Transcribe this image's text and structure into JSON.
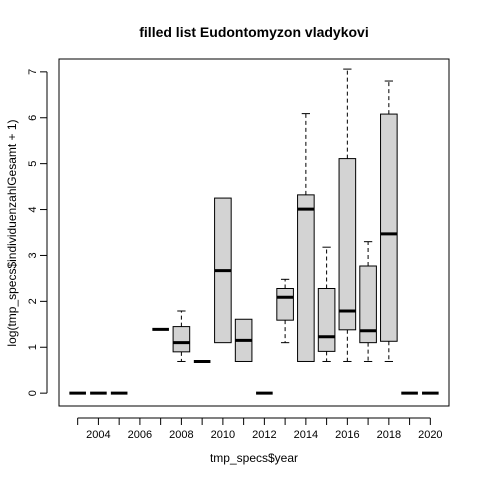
{
  "chart_data": {
    "type": "boxplot",
    "title": "filled list Eudontomyzon vladykovi",
    "xlabel": "tmp_specs$year",
    "ylabel": "log(tmp_specs$individuenzahlGesamt + 1)",
    "ylim": [
      -0.28,
      7.28
    ],
    "yticks": [
      0,
      1,
      2,
      3,
      4,
      5,
      6,
      7
    ],
    "xtick_labels": [
      "2004",
      "2006",
      "2008",
      "2010",
      "2012",
      "2014",
      "2016",
      "2018",
      "2020"
    ],
    "grid": false,
    "categories": [
      "2003",
      "2004",
      "2005",
      "2006",
      "2007",
      "2008",
      "2009",
      "2010",
      "2011",
      "2012",
      "2013",
      "2014",
      "2015",
      "2016",
      "2017",
      "2018",
      "2019",
      "2020"
    ],
    "boxes": [
      {
        "year": "2003",
        "min": 0,
        "q1": 0,
        "median": 0,
        "q3": 0,
        "max": 0
      },
      {
        "year": "2004",
        "min": 0,
        "q1": 0,
        "median": 0,
        "q3": 0,
        "max": 0
      },
      {
        "year": "2005",
        "min": 0,
        "q1": 0,
        "median": 0,
        "q3": 0,
        "max": 0
      },
      {
        "year": "2006",
        "min": null,
        "q1": null,
        "median": null,
        "q3": null,
        "max": null
      },
      {
        "year": "2007",
        "min": 1.39,
        "q1": 1.39,
        "median": 1.39,
        "q3": 1.39,
        "max": 1.39
      },
      {
        "year": "2008",
        "min": 0.69,
        "q1": 0.9,
        "median": 1.1,
        "q3": 1.45,
        "max": 1.79
      },
      {
        "year": "2009",
        "min": 0.69,
        "q1": 0.69,
        "median": 0.69,
        "q3": 0.69,
        "max": 0.69
      },
      {
        "year": "2010",
        "min": 1.1,
        "q1": 1.1,
        "median": 2.67,
        "q3": 4.25,
        "max": 4.25
      },
      {
        "year": "2011",
        "min": 0.69,
        "q1": 0.69,
        "median": 1.15,
        "q3": 1.61,
        "max": 1.61
      },
      {
        "year": "2012",
        "min": 0,
        "q1": 0,
        "median": 0,
        "q3": 0,
        "max": 0
      },
      {
        "year": "2013",
        "min": 1.1,
        "q1": 1.59,
        "median": 2.09,
        "q3": 2.28,
        "max": 2.48
      },
      {
        "year": "2014",
        "min": 0.69,
        "q1": 0.69,
        "median": 4.01,
        "q3": 4.32,
        "max": 6.09
      },
      {
        "year": "2015",
        "min": 0.69,
        "q1": 0.91,
        "median": 1.23,
        "q3": 2.28,
        "max": 3.18
      },
      {
        "year": "2016",
        "min": 0.69,
        "q1": 1.38,
        "median": 1.79,
        "q3": 5.11,
        "max": 7.06
      },
      {
        "year": "2017",
        "min": 0.69,
        "q1": 1.1,
        "median": 1.36,
        "q3": 2.77,
        "max": 3.3
      },
      {
        "year": "2018",
        "min": 0.69,
        "q1": 1.13,
        "median": 3.47,
        "q3": 6.08,
        "max": 6.8
      },
      {
        "year": "2019",
        "min": 0,
        "q1": 0,
        "median": 0,
        "q3": 0,
        "max": 0
      },
      {
        "year": "2020",
        "min": 0,
        "q1": 0,
        "median": 0,
        "q3": 0,
        "max": 0
      }
    ]
  }
}
